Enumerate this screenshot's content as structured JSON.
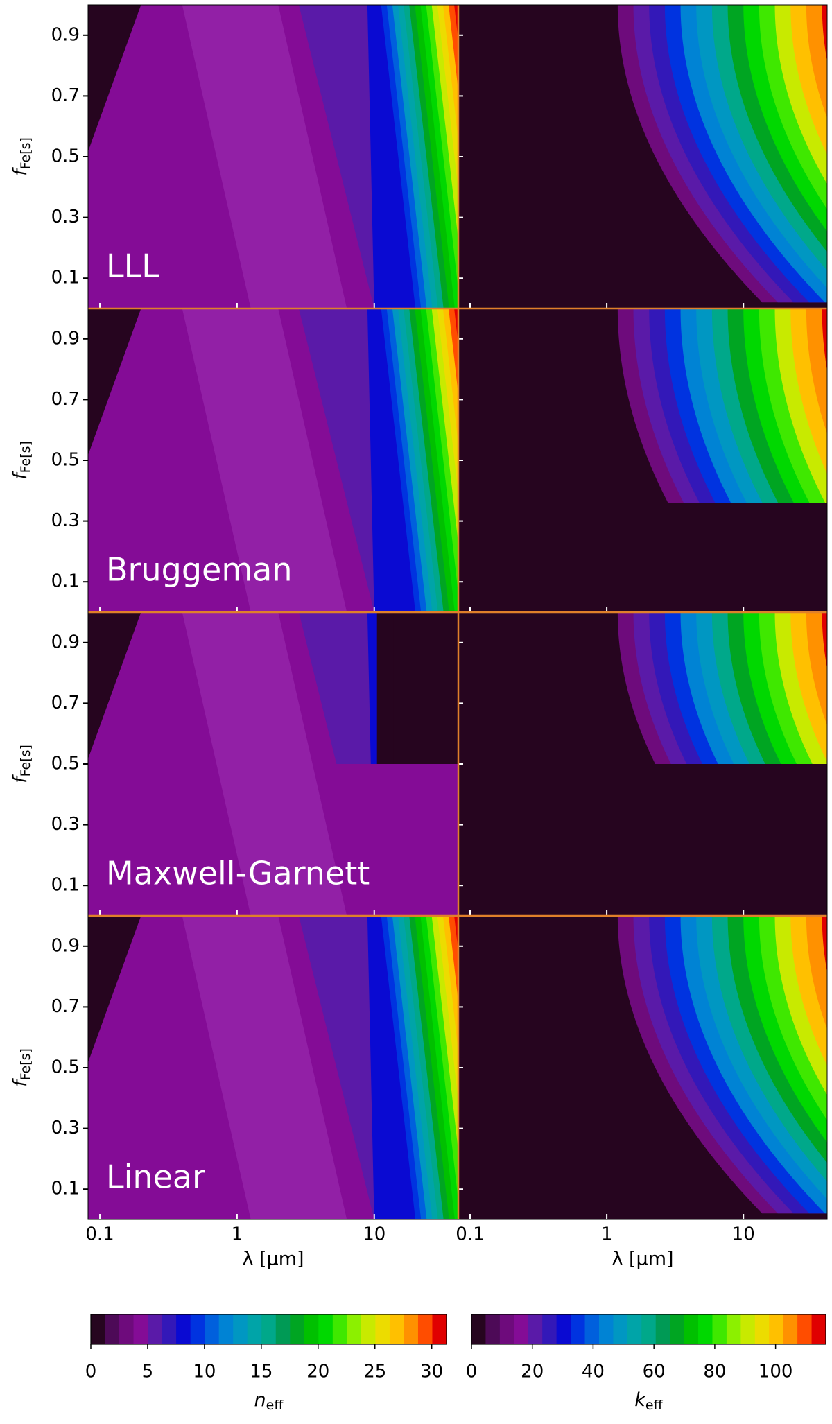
{
  "chart_data": {
    "type": "contour",
    "panels": [
      "LLL",
      "Bruggeman",
      "Maxwell-Garnett",
      "Linear"
    ],
    "xlabel": "λ [μm]",
    "ylabel": {
      "symbol": "f",
      "subscript": "Fe[s]"
    },
    "xlim": [
      0.082,
      41
    ],
    "xticks": [
      0.1,
      1,
      10
    ],
    "log_x": true,
    "ylim": [
      0,
      1
    ],
    "yticks": [
      0.1,
      0.3,
      0.5,
      0.7,
      0.9
    ],
    "colormap": [
      "#26051f",
      "#4d0a57",
      "#6e0b7c",
      "#840c96",
      "#5a1aa8",
      "#3318b8",
      "#0a0ad2",
      "#0033e0",
      "#0060dd",
      "#0083d4",
      "#0097c2",
      "#00a4a8",
      "#00a88a",
      "#009a55",
      "#00a522",
      "#00c000",
      "#00d800",
      "#3fe800",
      "#8cf000",
      "#c8ea00",
      "#ecdc00",
      "#ffc000",
      "#ff9100",
      "#ff4d00",
      "#e00000"
    ],
    "colorbars": [
      {
        "label": {
          "symbol": "n",
          "subscript": "eff"
        },
        "lim": [
          0,
          31.3
        ],
        "ticks": [
          0,
          5,
          10,
          15,
          20,
          25,
          30
        ]
      },
      {
        "label": {
          "symbol": "k",
          "subscript": "eff"
        },
        "lim": [
          0,
          116.5
        ],
        "ticks": [
          0,
          20,
          40,
          60,
          80,
          100
        ]
      }
    ]
  }
}
